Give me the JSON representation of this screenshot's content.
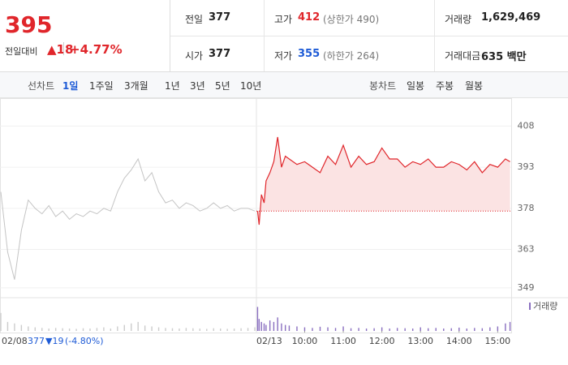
{
  "header": {
    "price": "395",
    "change_label": "전일대비",
    "change": "▲18",
    "change_rate": "+4.77%",
    "stats": [
      {
        "label": "전일",
        "value": "377"
      },
      {
        "label": "고가",
        "value": "412",
        "note": "(상한가 490)",
        "color": "#e0262b"
      },
      {
        "label": "거래량",
        "value": "1,629,469"
      },
      {
        "label": "시가",
        "value": "377"
      },
      {
        "label": "저가",
        "value": "355",
        "note": "(하한가 264)",
        "color": "#1e5bd6"
      },
      {
        "label": "거래대금",
        "value": "635 백만"
      }
    ]
  },
  "tabs": {
    "line_label": "선차트",
    "line_periods": [
      "1일",
      "1주일",
      "3개월",
      "1년",
      "3년",
      "5년",
      "10년"
    ],
    "selected_index": 0,
    "candle_label": "봉차트",
    "candle_periods": [
      "일봉",
      "주봉",
      "월봉"
    ]
  },
  "chart_data": {
    "type": "line",
    "ylim": [
      346,
      417
    ],
    "yticks": [
      349,
      363,
      378,
      393,
      408
    ],
    "xlim": [
      8.75,
      15.35
    ],
    "xticks": [
      {
        "value": 10,
        "label": "10:00"
      },
      {
        "value": 11,
        "label": "11:00"
      },
      {
        "value": 12,
        "label": "12:00"
      },
      {
        "value": 13,
        "label": "13:00"
      },
      {
        "value": 14,
        "label": "14:00"
      },
      {
        "value": 15,
        "label": "15:00"
      }
    ],
    "base_value": 377,
    "volume_label": "거래량",
    "volume_color": "#8a6fc0",
    "volume_ylim": [
      0,
      100
    ],
    "series": [
      {
        "date": "02/08",
        "close_label": "377",
        "change_label": "▼19",
        "rate_label": "(-4.80%)",
        "color": "#c4c4c4",
        "values": [
          384,
          362,
          352,
          370,
          381,
          378,
          376,
          379,
          375,
          377,
          374,
          376,
          375,
          377,
          376,
          378,
          377,
          384,
          389,
          392,
          396,
          388,
          391,
          384,
          380,
          381,
          378,
          380,
          379,
          377,
          378,
          380,
          378,
          379,
          377,
          378,
          378,
          377
        ],
        "volume": [
          60,
          30,
          25,
          20,
          15,
          12,
          10,
          8,
          10,
          9,
          8,
          7,
          9,
          8,
          10,
          12,
          8,
          15,
          20,
          25,
          30,
          18,
          15,
          12,
          10,
          9,
          8,
          10,
          9,
          8,
          7,
          9,
          8,
          7,
          8,
          9,
          10,
          12
        ]
      },
      {
        "date": "02/13",
        "color": "#e0262b",
        "fill": "#fbe3e3",
        "x": [
          8.78,
          8.82,
          8.88,
          8.95,
          9.0,
          9.1,
          9.2,
          9.3,
          9.4,
          9.5,
          9.6,
          9.8,
          10.0,
          10.2,
          10.4,
          10.6,
          10.8,
          11.0,
          11.2,
          11.4,
          11.6,
          11.8,
          12.0,
          12.2,
          12.4,
          12.6,
          12.8,
          13.0,
          13.2,
          13.4,
          13.6,
          13.8,
          14.0,
          14.2,
          14.4,
          14.6,
          14.8,
          15.0,
          15.2,
          15.32
        ],
        "values": [
          377,
          372,
          383,
          380,
          388,
          391,
          395,
          404,
          393,
          397,
          396,
          394,
          395,
          393,
          391,
          397,
          394,
          401,
          393,
          397,
          394,
          395,
          400,
          396,
          396,
          393,
          395,
          394,
          396,
          393,
          393,
          395,
          394,
          392,
          395,
          391,
          394,
          393,
          396,
          395
        ],
        "volume": [
          80,
          40,
          30,
          25,
          20,
          35,
          30,
          45,
          25,
          20,
          18,
          15,
          12,
          10,
          14,
          12,
          10,
          15,
          9,
          10,
          8,
          9,
          12,
          8,
          10,
          9,
          8,
          12,
          9,
          10,
          8,
          9,
          11,
          8,
          10,
          9,
          12,
          15,
          25,
          30
        ]
      }
    ]
  }
}
